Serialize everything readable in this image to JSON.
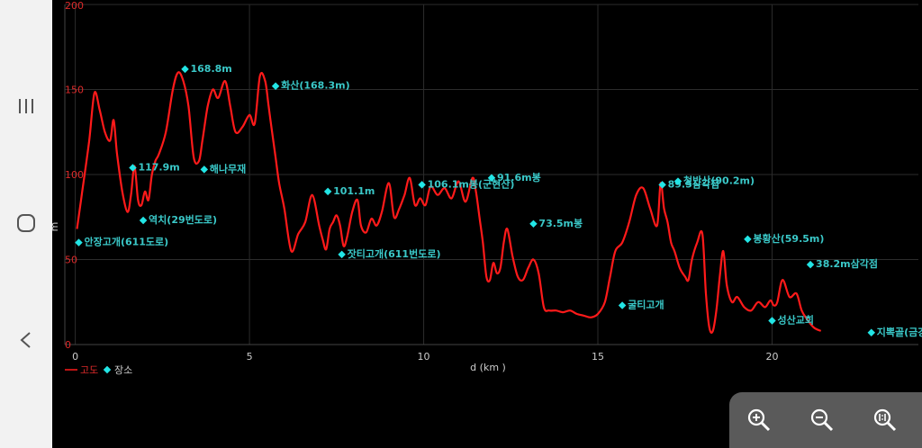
{
  "nav": {
    "recents_icon": "recents-icon",
    "home_icon": "home-icon",
    "back_icon": "back-icon"
  },
  "zoom": {
    "zoom_in_icon": "zoom-in-icon",
    "zoom_out_icon": "zoom-out-icon",
    "zoom_reset_icon": "zoom-reset-icon"
  },
  "colors": {
    "elevation": "#ff1a1a",
    "place": "#22e5e5",
    "tick": "#dd2a2a",
    "grid": "#2c2c2c"
  },
  "chart_data": {
    "type": "line",
    "xlabel": "d (km )",
    "ylabel": "m",
    "xlim": [
      -0.3,
      24.2
    ],
    "ylim": [
      0,
      200
    ],
    "xticks": [
      "0",
      "5",
      "10",
      "15",
      "20"
    ],
    "yticks": [
      "0",
      "50",
      "100",
      "150",
      "200"
    ],
    "legend": {
      "placement": "bottom-left",
      "line_label": "고도",
      "marker_label": "장소"
    },
    "elevation": {
      "x": [
        0.05,
        0.2,
        0.4,
        0.55,
        0.7,
        0.85,
        1.0,
        1.1,
        1.2,
        1.35,
        1.5,
        1.6,
        1.7,
        1.8,
        1.9,
        2.0,
        2.1,
        2.2,
        2.3,
        2.4,
        2.6,
        2.8,
        2.95,
        3.1,
        3.25,
        3.4,
        3.55,
        3.65,
        3.8,
        3.95,
        4.1,
        4.3,
        4.45,
        4.6,
        4.8,
        5.0,
        5.15,
        5.3,
        5.45,
        5.55,
        5.65,
        5.75,
        5.85,
        6.0,
        6.2,
        6.4,
        6.6,
        6.8,
        7.0,
        7.1,
        7.2,
        7.3,
        7.4,
        7.5,
        7.6,
        7.7,
        7.8,
        7.95,
        8.1,
        8.2,
        8.35,
        8.5,
        8.65,
        8.8,
        9.0,
        9.15,
        9.3,
        9.45,
        9.6,
        9.75,
        9.9,
        10.05,
        10.2,
        10.4,
        10.6,
        10.8,
        11.0,
        11.2,
        11.4,
        11.5,
        11.6,
        11.7,
        11.8,
        11.9,
        12.0,
        12.1,
        12.2,
        12.3,
        12.4,
        12.55,
        12.7,
        12.85,
        13.0,
        13.15,
        13.3,
        13.45,
        13.6,
        13.8,
        14.0,
        14.2,
        14.4,
        14.6,
        14.8,
        15.0,
        15.2,
        15.35,
        15.5,
        15.7,
        15.9,
        16.1,
        16.3,
        16.5,
        16.7,
        16.8,
        16.9,
        17.0,
        17.1,
        17.2,
        17.35,
        17.5,
        17.6,
        17.7,
        17.85,
        18.0,
        18.1,
        18.2,
        18.3,
        18.4,
        18.5,
        18.6,
        18.7,
        18.85,
        19.0,
        19.2,
        19.4,
        19.6,
        19.8,
        19.95,
        20.05,
        20.15,
        20.3,
        20.5,
        20.7,
        20.85,
        21.0,
        21.2,
        21.4
      ],
      "y": [
        68,
        90,
        120,
        148,
        138,
        125,
        120,
        132,
        112,
        90,
        78,
        88,
        105,
        85,
        82,
        90,
        85,
        100,
        108,
        112,
        125,
        150,
        160,
        155,
        140,
        110,
        108,
        120,
        140,
        150,
        145,
        155,
        140,
        125,
        128,
        135,
        130,
        158,
        155,
        140,
        125,
        110,
        95,
        80,
        55,
        65,
        72,
        88,
        70,
        62,
        56,
        68,
        72,
        76,
        70,
        58,
        63,
        78,
        85,
        70,
        66,
        74,
        70,
        78,
        95,
        75,
        80,
        88,
        98,
        82,
        86,
        82,
        93,
        88,
        92,
        86,
        96,
        84,
        98,
        90,
        75,
        60,
        40,
        38,
        48,
        42,
        45,
        60,
        68,
        52,
        40,
        38,
        45,
        50,
        42,
        22,
        20,
        20,
        19,
        20,
        18,
        17,
        16,
        18,
        25,
        40,
        55,
        60,
        72,
        88,
        92,
        80,
        70,
        95,
        80,
        72,
        60,
        55,
        45,
        40,
        38,
        50,
        60,
        65,
        30,
        10,
        8,
        20,
        40,
        55,
        35,
        25,
        28,
        22,
        20,
        25,
        22,
        26,
        23,
        25,
        38,
        28,
        30,
        20,
        15,
        10,
        8
      ]
    },
    "places": [
      {
        "x": 0.1,
        "y": 60,
        "label": "안장고개(611도로)"
      },
      {
        "x": 1.65,
        "y": 104,
        "label": "117.9m"
      },
      {
        "x": 1.95,
        "y": 73,
        "label": "역치(29번도로)"
      },
      {
        "x": 3.15,
        "y": 162,
        "label": "168.8m"
      },
      {
        "x": 3.7,
        "y": 103,
        "label": "해나무재"
      },
      {
        "x": 5.75,
        "y": 152,
        "label": "화산(168.3m)"
      },
      {
        "x": 7.25,
        "y": 90,
        "label": "101.1m"
      },
      {
        "x": 7.65,
        "y": 53,
        "label": "잣티고개(611번도로)"
      },
      {
        "x": 9.95,
        "y": 94,
        "label": "106.1m봉(군현산)"
      },
      {
        "x": 11.95,
        "y": 98,
        "label": "91.6m봉"
      },
      {
        "x": 13.15,
        "y": 71,
        "label": "73.5m봉"
      },
      {
        "x": 15.7,
        "y": 23,
        "label": "굴티고개"
      },
      {
        "x": 16.85,
        "y": 94,
        "label": "89.5삼각점"
      },
      {
        "x": 17.3,
        "y": 96,
        "label": "청반산(90.2m)"
      },
      {
        "x": 19.3,
        "y": 62,
        "label": "봉황산(59.5m)"
      },
      {
        "x": 20.0,
        "y": 14,
        "label": "성산교회"
      },
      {
        "x": 21.1,
        "y": 47,
        "label": "38.2m삼각점"
      },
      {
        "x": 22.85,
        "y": 7,
        "label": "지뽁골(금강"
      }
    ]
  }
}
